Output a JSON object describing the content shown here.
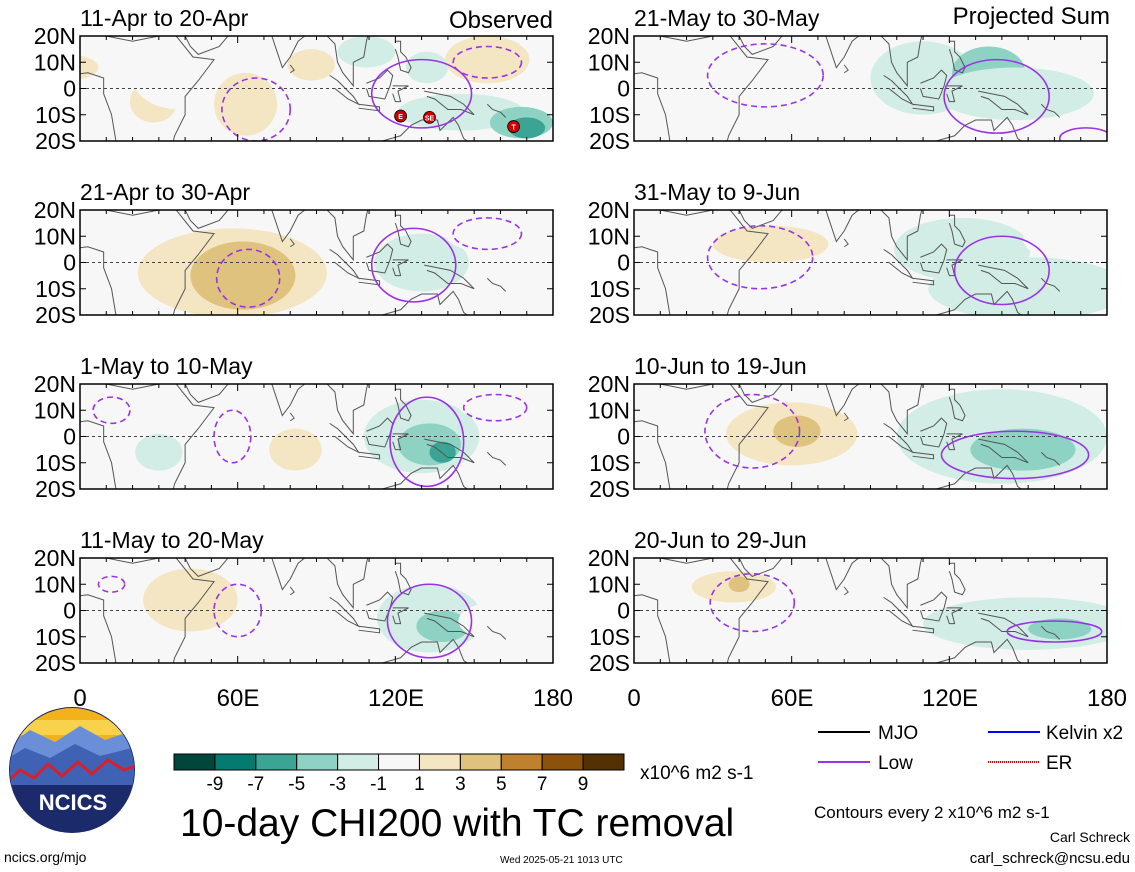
{
  "figure": {
    "title": "10-day CHI200 with TC removal",
    "credit_name": "Carl Schreck",
    "credit_email": "carl_schreck@ncsu.edu",
    "website": "ncics.org/mjo",
    "timestamp": "Wed 2025-05-21 1013 UTC",
    "logo_text": "NCICS",
    "contour_note": "Contours every 2 x10^6 m2 s-1",
    "colorbar_units": "x10^6 m2 s-1"
  },
  "colors": {
    "palette": [
      "#01463b",
      "#057a6e",
      "#3ba495",
      "#8dd2c2",
      "#d2ede6",
      "#f7f7f7",
      "#f4e6c2",
      "#dfc27d",
      "#bf812d",
      "#8c510a",
      "#543005"
    ],
    "mjo": "#000000",
    "low": "#9a32e6",
    "kelvin": "#0000ff",
    "er": "#e00000",
    "tc": "#cc0000"
  },
  "chart_data": {
    "type": "heatmap",
    "variable": "10-day CHI200 with TC removal",
    "units": "x10^6 m2 s-1",
    "colorbar_ticks": [
      "-9",
      "-7",
      "-5",
      "-3",
      "-1",
      "1",
      "3",
      "5",
      "7",
      "9"
    ],
    "x_ticks": [
      "0",
      "60E",
      "120E",
      "180"
    ],
    "y_ticks": [
      "20N",
      "10N",
      "0",
      "10S",
      "20S"
    ],
    "xlim": [
      0,
      180
    ],
    "ylim": [
      -20,
      20
    ],
    "column_headers": [
      "Observed",
      "Projected Sum"
    ],
    "legend": [
      {
        "label": "MJO",
        "color": "#000000"
      },
      {
        "label": "Kelvin x2",
        "color": "#0000ff"
      },
      {
        "label": "Low",
        "color": "#9a32e6"
      },
      {
        "label": "ER",
        "color": "#e00000"
      }
    ],
    "panels": [
      {
        "title": "11-Apr to 20-Apr",
        "column": "Observed",
        "tc_labels": [
          "E",
          "SE",
          "T"
        ],
        "tc_points": [
          [
            122,
            -10.5
          ],
          [
            133,
            -11
          ],
          [
            165,
            -14.5
          ]
        ],
        "anomalies": [
          {
            "lon": -5,
            "lat": 8,
            "value": 3,
            "rlon": 12,
            "rlat": 5
          },
          {
            "lon": 28,
            "lat": -5,
            "value": 3,
            "rlon": 9,
            "rlat": 8
          },
          {
            "lon": 38,
            "lat": 4,
            "value": 1,
            "rlon": 18,
            "rlat": 12
          },
          {
            "lon": 63,
            "lat": -6,
            "value": 3,
            "rlon": 12,
            "rlat": 12
          },
          {
            "lon": 88,
            "lat": 9,
            "value": 3,
            "rlon": 9,
            "rlat": 6
          },
          {
            "lon": 109,
            "lat": 14,
            "value": -1,
            "rlon": 11,
            "rlat": 6
          },
          {
            "lon": 132,
            "lat": 8,
            "value": -1,
            "rlon": 8,
            "rlat": 6
          },
          {
            "lon": 145,
            "lat": -9,
            "value": -1,
            "rlon": 24,
            "rlat": 7
          },
          {
            "lon": 155,
            "lat": 11,
            "value": 3,
            "rlon": 16,
            "rlat": 9
          },
          {
            "lon": 168,
            "lat": -13,
            "value": -3,
            "rlon": 12,
            "rlat": 6
          },
          {
            "lon": 170,
            "lat": -15,
            "value": -5,
            "rlon": 7,
            "rlat": 4
          }
        ],
        "contours": [
          {
            "kind": "low",
            "dash": true,
            "lon": 67,
            "lat": -8,
            "rlon": 13,
            "rlat": 12
          },
          {
            "kind": "low",
            "dash": true,
            "lon": 155,
            "lat": 10,
            "rlon": 13,
            "rlat": 6
          },
          {
            "kind": "low",
            "dash": false,
            "lon": 130,
            "lat": -2,
            "rlon": 19,
            "rlat": 13
          }
        ]
      },
      {
        "title": "21-May to 30-May",
        "column": "Projected Sum",
        "tc_labels": [],
        "tc_points": [],
        "anomalies": [
          {
            "lon": 50,
            "lat": 3,
            "value": 1,
            "rlon": 35,
            "rlat": 13
          },
          {
            "lon": 42,
            "lat": -14,
            "value": 1,
            "rlon": 24,
            "rlat": 6
          },
          {
            "lon": 110,
            "lat": 4,
            "value": -1,
            "rlon": 20,
            "rlat": 14
          },
          {
            "lon": 135,
            "lat": 6,
            "value": -3,
            "rlon": 14,
            "rlat": 10
          },
          {
            "lon": 145,
            "lat": -2,
            "value": -1,
            "rlon": 30,
            "rlat": 10
          }
        ],
        "contours": [
          {
            "kind": "low",
            "dash": true,
            "lon": 50,
            "lat": 5,
            "rlon": 22,
            "rlat": 12
          },
          {
            "kind": "low",
            "dash": false,
            "lon": 138,
            "lat": -3,
            "rlon": 20,
            "rlat": 14
          },
          {
            "kind": "low",
            "dash": false,
            "lon": 172,
            "lat": -19,
            "rlon": 10,
            "rlat": 4
          }
        ]
      },
      {
        "title": "21-Apr to 30-Apr",
        "column": "Observed",
        "tc_labels": [],
        "tc_points": [],
        "anomalies": [
          {
            "lon": 8,
            "lat": -2,
            "value": 1,
            "rlon": 18,
            "rlat": 14
          },
          {
            "lon": 58,
            "lat": -4,
            "value": 3,
            "rlon": 36,
            "rlat": 17
          },
          {
            "lon": 62,
            "lat": -5,
            "value": 5,
            "rlon": 20,
            "rlat": 13
          },
          {
            "lon": 105,
            "lat": -14,
            "value": 1,
            "rlon": 14,
            "rlat": 6
          },
          {
            "lon": 130,
            "lat": 0,
            "value": -1,
            "rlon": 18,
            "rlat": 11
          },
          {
            "lon": 155,
            "lat": 11,
            "value": 1,
            "rlon": 16,
            "rlat": 7
          }
        ],
        "contours": [
          {
            "kind": "low",
            "dash": true,
            "lon": 64,
            "lat": -6,
            "rlon": 12,
            "rlat": 11
          },
          {
            "kind": "low",
            "dash": true,
            "lon": 155,
            "lat": 11,
            "rlon": 13,
            "rlat": 6
          },
          {
            "kind": "low",
            "dash": false,
            "lon": 127,
            "lat": -1,
            "rlon": 16,
            "rlat": 14
          }
        ]
      },
      {
        "title": "31-May to 9-Jun",
        "column": "Projected Sum",
        "tc_labels": [],
        "tc_points": [],
        "anomalies": [
          {
            "lon": 45,
            "lat": 5,
            "value": 1,
            "rlon": 42,
            "rlat": 15
          },
          {
            "lon": 52,
            "lat": 7,
            "value": 3,
            "rlon": 22,
            "rlat": 7
          },
          {
            "lon": 125,
            "lat": 5,
            "value": -1,
            "rlon": 26,
            "rlat": 12
          },
          {
            "lon": 150,
            "lat": -10,
            "value": -1,
            "rlon": 38,
            "rlat": 12
          },
          {
            "lon": 160,
            "lat": 9,
            "value": 1,
            "rlon": 12,
            "rlat": 7
          }
        ],
        "contours": [
          {
            "kind": "low",
            "dash": true,
            "lon": 48,
            "lat": 2,
            "rlon": 20,
            "rlat": 12
          },
          {
            "kind": "low",
            "dash": false,
            "lon": 140,
            "lat": -3,
            "rlon": 18,
            "rlat": 13
          }
        ]
      },
      {
        "title": "1-May to 10-May",
        "column": "Observed",
        "tc_labels": [],
        "tc_points": [],
        "anomalies": [
          {
            "lon": 65,
            "lat": 3,
            "value": 1,
            "rlon": 28,
            "rlat": 12
          },
          {
            "lon": 82,
            "lat": -5,
            "value": 3,
            "rlon": 10,
            "rlat": 8
          },
          {
            "lon": 30,
            "lat": -6,
            "value": -1,
            "rlon": 9,
            "rlat": 7
          },
          {
            "lon": 130,
            "lat": 0,
            "value": -1,
            "rlon": 22,
            "rlat": 14
          },
          {
            "lon": 133,
            "lat": -3,
            "value": -3,
            "rlon": 12,
            "rlat": 8
          },
          {
            "lon": 138,
            "lat": -6,
            "value": -5,
            "rlon": 5,
            "rlat": 4
          },
          {
            "lon": 158,
            "lat": 12,
            "value": 1,
            "rlon": 14,
            "rlat": 6
          }
        ],
        "contours": [
          {
            "kind": "low",
            "dash": true,
            "lon": 12,
            "lat": 10,
            "rlon": 7,
            "rlat": 5
          },
          {
            "kind": "low",
            "dash": true,
            "lon": 58,
            "lat": 0,
            "rlon": 7,
            "rlat": 10
          },
          {
            "kind": "low",
            "dash": true,
            "lon": 158,
            "lat": 11,
            "rlon": 12,
            "rlat": 5
          },
          {
            "kind": "low",
            "dash": false,
            "lon": 132,
            "lat": -2,
            "rlon": 14,
            "rlat": 17
          }
        ]
      },
      {
        "title": "10-Jun to 19-Jun",
        "column": "Projected Sum",
        "tc_labels": [],
        "tc_points": [],
        "anomalies": [
          {
            "lon": 55,
            "lat": 2,
            "value": 1,
            "rlon": 48,
            "rlat": 18
          },
          {
            "lon": 60,
            "lat": 1,
            "value": 3,
            "rlon": 25,
            "rlat": 12
          },
          {
            "lon": 62,
            "lat": 2,
            "value": 5,
            "rlon": 9,
            "rlat": 6
          },
          {
            "lon": 140,
            "lat": 0,
            "value": -1,
            "rlon": 40,
            "rlat": 18
          },
          {
            "lon": 148,
            "lat": -5,
            "value": -3,
            "rlon": 20,
            "rlat": 8
          }
        ],
        "contours": [
          {
            "kind": "low",
            "dash": true,
            "lon": 45,
            "lat": 2,
            "rlon": 18,
            "rlat": 14
          },
          {
            "kind": "low",
            "dash": false,
            "lon": 145,
            "lat": -7,
            "rlon": 28,
            "rlat": 9
          }
        ]
      },
      {
        "title": "11-May to 20-May",
        "column": "Observed",
        "tc_labels": [],
        "tc_points": [],
        "anomalies": [
          {
            "lon": 45,
            "lat": 2,
            "value": 1,
            "rlon": 50,
            "rlat": 18
          },
          {
            "lon": 42,
            "lat": 4,
            "value": 3,
            "rlon": 18,
            "rlat": 12
          },
          {
            "lon": 92,
            "lat": 5,
            "value": 1,
            "rlon": 10,
            "rlat": 6
          },
          {
            "lon": 133,
            "lat": -3,
            "value": -1,
            "rlon": 20,
            "rlat": 13
          },
          {
            "lon": 138,
            "lat": -6,
            "value": -3,
            "rlon": 10,
            "rlat": 6
          },
          {
            "lon": 158,
            "lat": -4,
            "value": 1,
            "rlon": 14,
            "rlat": 7
          }
        ],
        "contours": [
          {
            "kind": "low",
            "dash": true,
            "lon": 60,
            "lat": 0,
            "rlon": 9,
            "rlat": 10
          },
          {
            "kind": "low",
            "dash": true,
            "lon": 12,
            "lat": 10,
            "rlon": 5,
            "rlat": 3
          },
          {
            "kind": "low",
            "dash": false,
            "lon": 133,
            "lat": -4,
            "rlon": 16,
            "rlat": 14
          }
        ]
      },
      {
        "title": "20-Jun to 29-Jun",
        "column": "Projected Sum",
        "tc_labels": [],
        "tc_points": [],
        "anomalies": [
          {
            "lon": 40,
            "lat": 9,
            "value": 1,
            "rlon": 42,
            "rlat": 11
          },
          {
            "lon": 38,
            "lat": 9,
            "value": 3,
            "rlon": 16,
            "rlat": 6
          },
          {
            "lon": 40,
            "lat": 10,
            "value": 5,
            "rlon": 4,
            "rlat": 3
          },
          {
            "lon": 72,
            "lat": -10,
            "value": 1,
            "rlon": 20,
            "rlat": 6
          },
          {
            "lon": 150,
            "lat": -5,
            "value": -1,
            "rlon": 40,
            "rlat": 10
          },
          {
            "lon": 162,
            "lat": -7,
            "value": -3,
            "rlon": 12,
            "rlat": 4
          }
        ],
        "contours": [
          {
            "kind": "low",
            "dash": true,
            "lon": 45,
            "lat": 3,
            "rlon": 16,
            "rlat": 11
          },
          {
            "kind": "low",
            "dash": false,
            "lon": 160,
            "lat": -8,
            "rlon": 18,
            "rlat": 4
          }
        ]
      }
    ]
  }
}
